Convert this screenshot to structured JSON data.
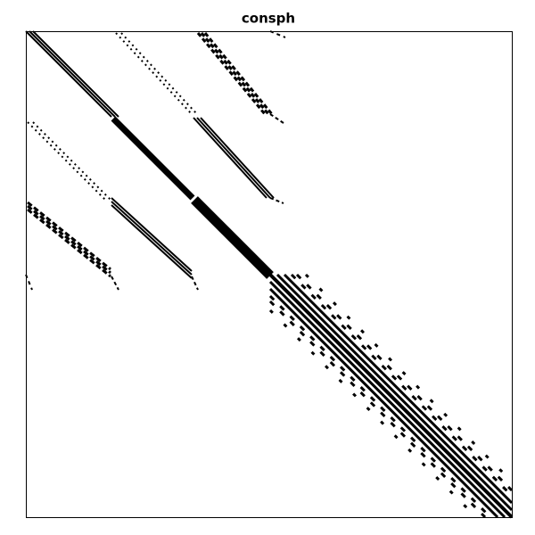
{
  "title": "consph"
}
